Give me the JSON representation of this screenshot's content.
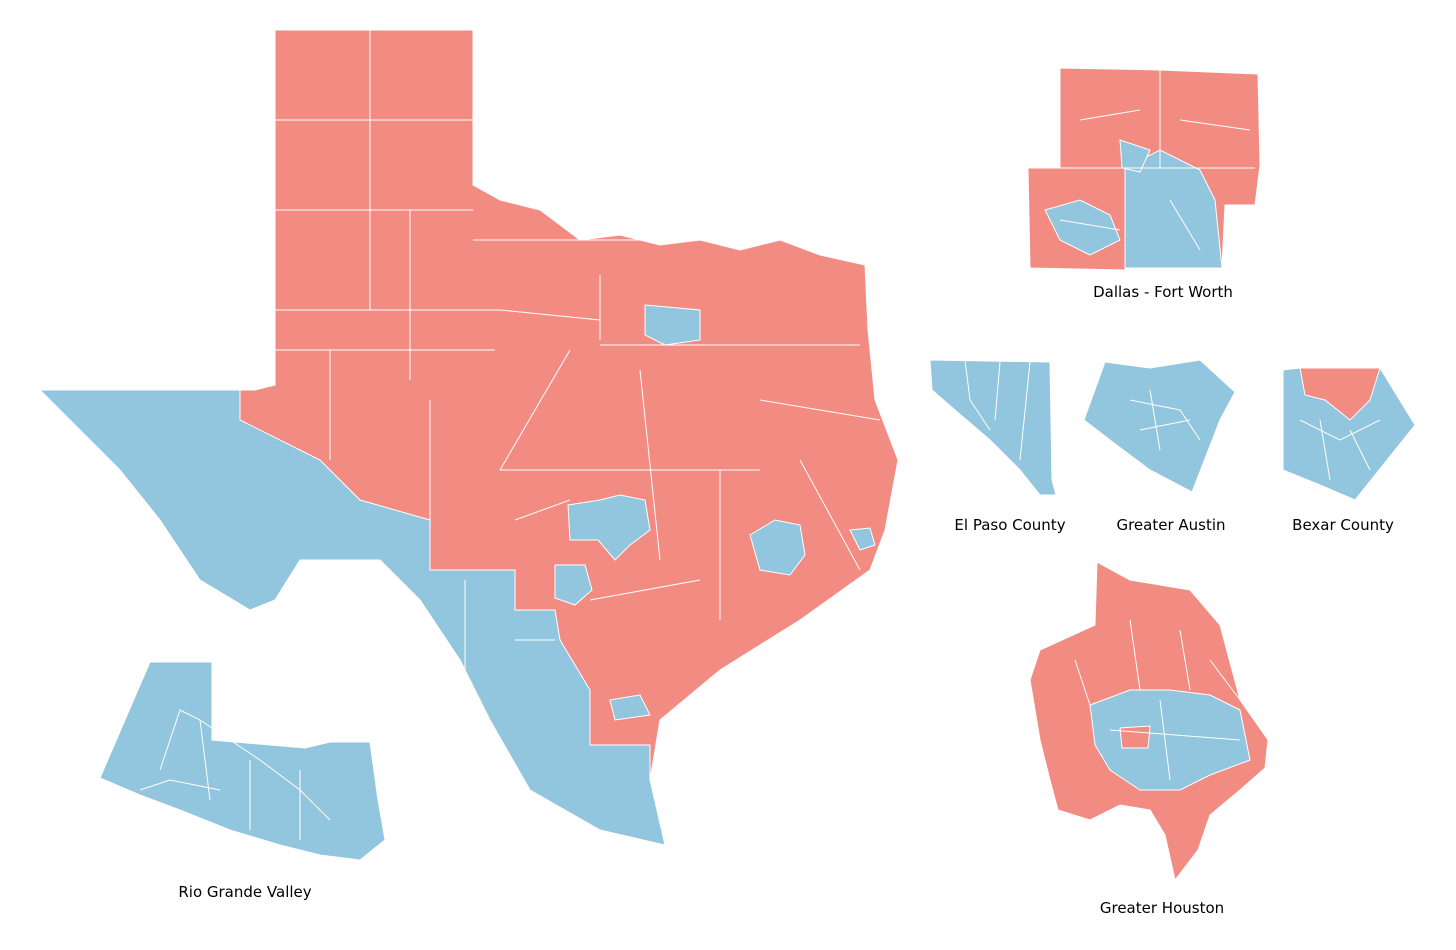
{
  "insets": [
    {
      "label": "Dallas - Fort Worth"
    },
    {
      "label": "El Paso County"
    },
    {
      "label": "Greater Austin"
    },
    {
      "label": "Bexar County"
    },
    {
      "label": "Greater Houston"
    },
    {
      "label": "Rio Grande Valley"
    }
  ]
}
